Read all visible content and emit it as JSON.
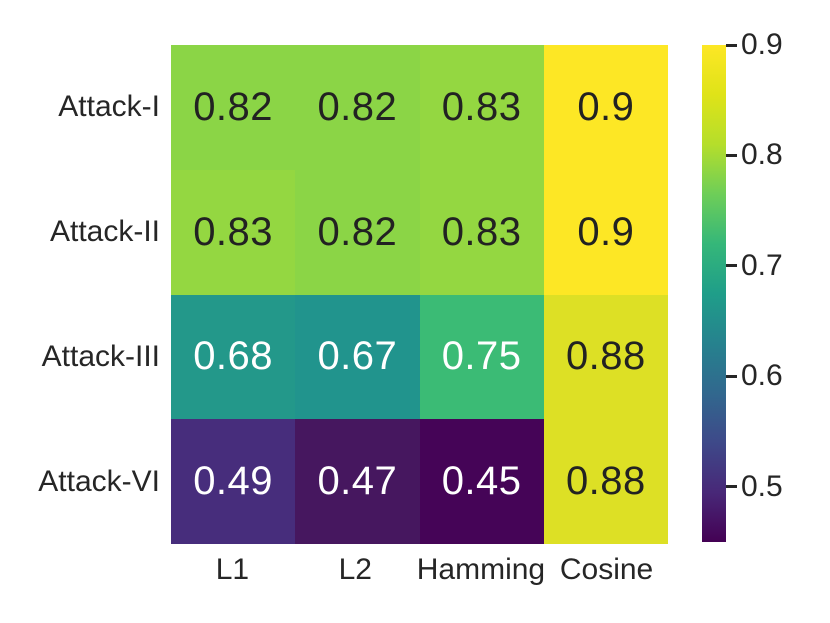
{
  "figure": {
    "background": "#ffffff",
    "text_color": "#262626"
  },
  "chart_data": {
    "type": "heatmap",
    "title": "",
    "xlabel": "",
    "ylabel": "",
    "rows": [
      "Attack-I",
      "Attack-II",
      "Attack-III",
      "Attack-VI"
    ],
    "columns": [
      "L1",
      "L2",
      "Hamming",
      "Cosine"
    ],
    "values": [
      [
        0.82,
        0.82,
        0.83,
        0.9
      ],
      [
        0.83,
        0.82,
        0.83,
        0.9
      ],
      [
        0.68,
        0.67,
        0.75,
        0.88
      ],
      [
        0.49,
        0.47,
        0.45,
        0.88
      ]
    ],
    "cell_labels": [
      [
        "0.82",
        "0.82",
        "0.83",
        "0.9"
      ],
      [
        "0.83",
        "0.82",
        "0.83",
        "0.9"
      ],
      [
        "0.68",
        "0.67",
        "0.75",
        "0.88"
      ],
      [
        "0.49",
        "0.47",
        "0.45",
        "0.88"
      ]
    ],
    "cell_colors": [
      [
        "#8bd546",
        "#8bd546",
        "#94d741",
        "#fde725"
      ],
      [
        "#94d741",
        "#8bd546",
        "#94d741",
        "#fde725"
      ],
      [
        "#23988a",
        "#21948d",
        "#3bbb75",
        "#dde025"
      ],
      [
        "#472d7c",
        "#46175f",
        "#450457",
        "#dde025"
      ]
    ],
    "cell_text_colors": [
      [
        "#222222",
        "#222222",
        "#222222",
        "#222222"
      ],
      [
        "#222222",
        "#222222",
        "#222222",
        "#222222"
      ],
      [
        "#ffffff",
        "#ffffff",
        "#ffffff",
        "#222222"
      ],
      [
        "#ffffff",
        "#ffffff",
        "#ffffff",
        "#222222"
      ]
    ],
    "colormap": "viridis",
    "vmin": 0.45,
    "vmax": 0.9,
    "grid": false,
    "colorbar": {
      "position": "right",
      "tick_labels": [
        "0.9",
        "0.8",
        "0.7",
        "0.6",
        "0.5"
      ],
      "tick_values": [
        0.9,
        0.8,
        0.7,
        0.6,
        0.5
      ],
      "gradient_top_to_bottom": [
        "#fde725",
        "#dfe318",
        "#b5de2b",
        "#6ece58",
        "#35b779",
        "#1f9e89",
        "#26828e",
        "#31688e",
        "#3e4989",
        "#482878",
        "#440154"
      ]
    }
  }
}
